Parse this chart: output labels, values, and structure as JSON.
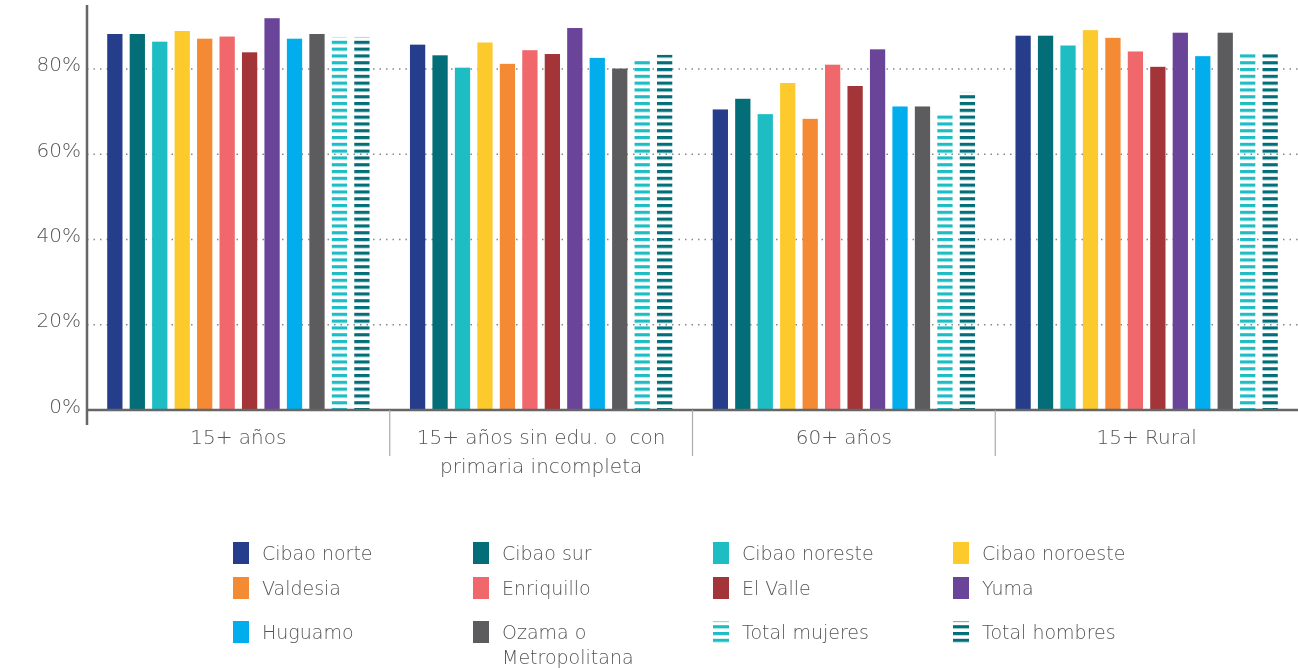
{
  "chart_data": {
    "type": "bar",
    "categories": [
      "15+ años",
      "15+ años sin edu. o  con primaria incompleta",
      "60+ años",
      "15+ Rural"
    ],
    "ylim": [
      0,
      95
    ],
    "yticks": [
      {
        "value": 0,
        "label": "0%"
      },
      {
        "value": 20,
        "label": "20%"
      },
      {
        "value": 40,
        "label": "40%"
      },
      {
        "value": 60,
        "label": "60%"
      },
      {
        "value": 80,
        "label": "80%"
      }
    ],
    "grid": "y",
    "legend": "bottom",
    "series": [
      {
        "name": "Cibao norte",
        "color": "#253d8b",
        "values": [
          88.2,
          85.7,
          70.5,
          87.8
        ]
      },
      {
        "name": "Cibao sur",
        "color": "#036e78",
        "values": [
          88.2,
          83.2,
          73.0,
          87.8
        ]
      },
      {
        "name": "Cibao noreste",
        "color": "#1ebdc3",
        "values": [
          86.4,
          80.3,
          69.4,
          85.5
        ]
      },
      {
        "name": "Cibao noroeste",
        "color": "#fdca2e",
        "values": [
          88.9,
          86.2,
          76.7,
          89.1
        ]
      },
      {
        "name": "Valdesia",
        "color": "#f58a34",
        "values": [
          87.1,
          81.2,
          68.3,
          87.3
        ]
      },
      {
        "name": "Enriquillo",
        "color": "#f0686b",
        "values": [
          87.6,
          84.4,
          81.0,
          84.1
        ]
      },
      {
        "name": "El Valle",
        "color": "#a33437",
        "values": [
          83.9,
          83.5,
          76.0,
          80.5
        ]
      },
      {
        "name": "Yuma",
        "color": "#6a4499",
        "values": [
          91.9,
          89.6,
          84.6,
          88.5
        ]
      },
      {
        "name": "Huguamo",
        "color": "#01adec",
        "values": [
          87.1,
          82.6,
          71.2,
          83.0
        ]
      },
      {
        "name": "Ozama o Metropolitana",
        "color": "#5c5c5e",
        "values": [
          88.2,
          80.1,
          71.2,
          88.5
        ]
      },
      {
        "name": "Total mujeres",
        "color": "#1ebdc3",
        "line_style": "dashed",
        "values": [
          87.5,
          82.0,
          69.2,
          83.6
        ]
      },
      {
        "name": "Total hombres",
        "color": "#036e78",
        "line_style": "dashed",
        "values": [
          87.5,
          83.3,
          74.6,
          83.6
        ]
      }
    ]
  }
}
